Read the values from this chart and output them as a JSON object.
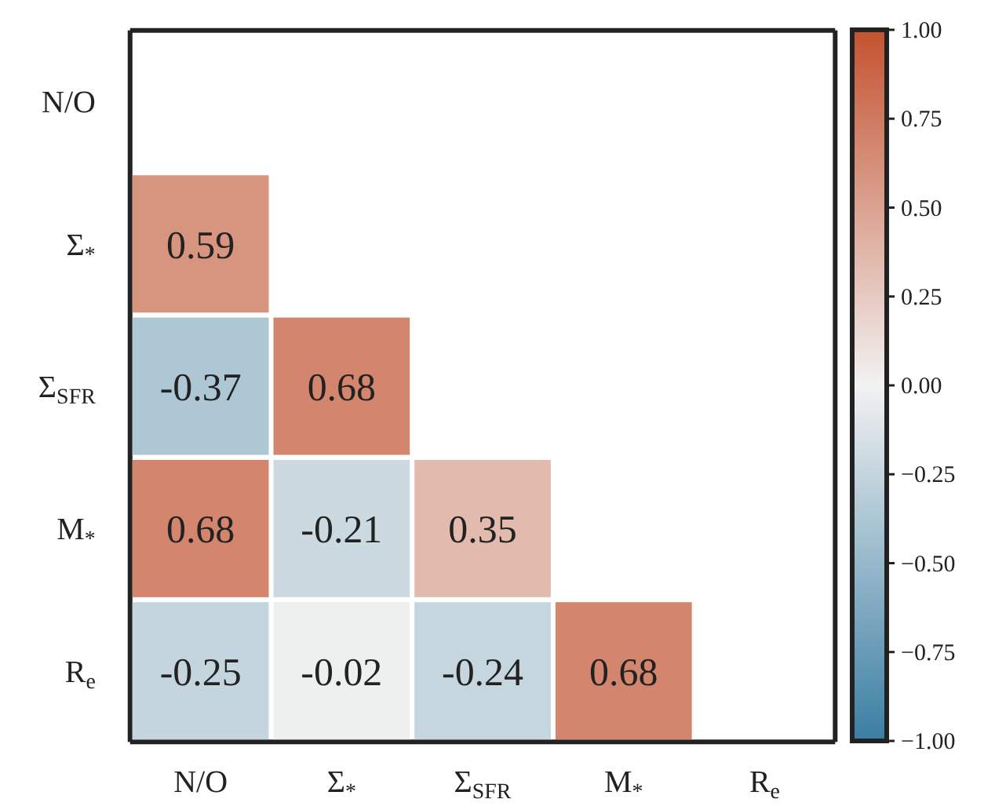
{
  "chart_data": {
    "type": "heatmap",
    "categories": [
      "N/O",
      "Σ$_{*}$",
      "Σ$_{SFR}$",
      "M$_{*}$",
      "R$_{e}$"
    ],
    "y_categories": [
      "N/O",
      "Σ$_{*}$",
      "Σ$_{SFR}$",
      "M$_{*}$",
      "R$_{e}$"
    ],
    "cells": [
      [
        null,
        null,
        null,
        null,
        null
      ],
      [
        0.59,
        null,
        null,
        null,
        null
      ],
      [
        -0.37,
        0.68,
        null,
        null,
        null
      ],
      [
        0.68,
        -0.21,
        0.35,
        null,
        null
      ],
      [
        -0.25,
        -0.02,
        -0.24,
        0.68,
        null
      ]
    ],
    "data_labels": true,
    "clim": [
      -1,
      1
    ],
    "cticks": [
      {
        "value": 1,
        "label": "1.00"
      },
      {
        "value": 0.75,
        "label": "0.75"
      },
      {
        "value": 0.5,
        "label": "0.50"
      },
      {
        "value": 0.25,
        "label": "0.25"
      },
      {
        "value": 0,
        "label": "0.00"
      },
      {
        "value": -0.25,
        "label": "−0.25"
      },
      {
        "value": -0.5,
        "label": "−0.50"
      },
      {
        "value": -0.75,
        "label": "−0.75"
      },
      {
        "value": -1,
        "label": "−1.00"
      }
    ]
  }
}
